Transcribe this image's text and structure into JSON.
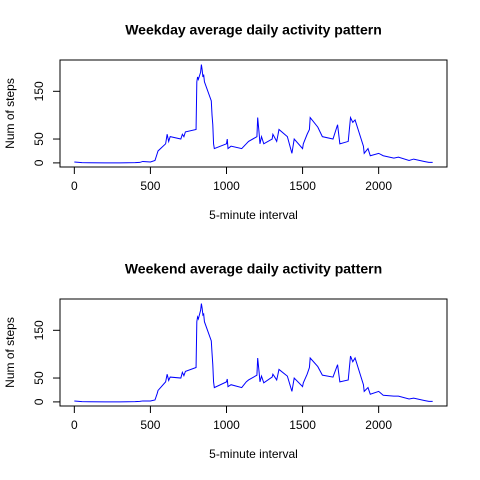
{
  "chart_data": [
    {
      "type": "line",
      "title": "Weekday average daily activity pattern",
      "x_label": "5-minute interval",
      "y_label": "Num of steps",
      "x": [
        0,
        50,
        100,
        200,
        300,
        400,
        430,
        450,
        500,
        530,
        545,
        550,
        600,
        610,
        620,
        630,
        700,
        710,
        720,
        730,
        800,
        805,
        810,
        815,
        830,
        835,
        840,
        845,
        850,
        855,
        900,
        905,
        910,
        915,
        920,
        1000,
        1005,
        1010,
        1030,
        1100,
        1130,
        1145,
        1200,
        1205,
        1215,
        1220,
        1230,
        1245,
        1300,
        1305,
        1330,
        1345,
        1400,
        1430,
        1445,
        1500,
        1505,
        1530,
        1545,
        1550,
        1600,
        1630,
        1700,
        1730,
        1745,
        1800,
        1815,
        1830,
        1845,
        1900,
        1905,
        1930,
        1945,
        2000,
        2030,
        2100,
        2130,
        2200,
        2230,
        2300,
        2330,
        2355
      ],
      "series": [
        {
          "name": "Weekday",
          "color": "#0000ff",
          "values": [
            2,
            0.5,
            0.3,
            0,
            0,
            0.5,
            1,
            3,
            2,
            5,
            20,
            25,
            40,
            60,
            45,
            55,
            50,
            60,
            55,
            65,
            70,
            170,
            180,
            175,
            190,
            206,
            195,
            180,
            185,
            170,
            130,
            100,
            80,
            40,
            30,
            40,
            50,
            30,
            35,
            30,
            40,
            45,
            55,
            95,
            60,
            40,
            55,
            40,
            50,
            60,
            45,
            70,
            55,
            20,
            50,
            30,
            40,
            60,
            70,
            95,
            75,
            55,
            50,
            80,
            40,
            45,
            95,
            85,
            90,
            35,
            20,
            30,
            15,
            20,
            15,
            10,
            12,
            5,
            8,
            3,
            1,
            1
          ]
        }
      ],
      "xlim": [
        -94.2,
        2449.2
      ],
      "ylim": [
        -8.6,
        215.6
      ],
      "xticks": [
        0,
        500,
        1000,
        1500,
        2000
      ],
      "yticks": [
        0,
        50,
        150
      ]
    },
    {
      "type": "line",
      "title": "Weekend average daily activity pattern",
      "x_label": "5-minute interval",
      "y_label": "Num of steps",
      "x": [
        0,
        50,
        100,
        200,
        300,
        400,
        430,
        450,
        500,
        530,
        545,
        550,
        600,
        610,
        620,
        630,
        700,
        710,
        720,
        730,
        800,
        805,
        810,
        815,
        830,
        835,
        840,
        845,
        850,
        855,
        900,
        905,
        910,
        915,
        920,
        1000,
        1005,
        1010,
        1030,
        1100,
        1130,
        1145,
        1200,
        1205,
        1215,
        1220,
        1230,
        1245,
        1300,
        1305,
        1330,
        1345,
        1400,
        1430,
        1445,
        1500,
        1505,
        1530,
        1545,
        1550,
        1600,
        1630,
        1700,
        1730,
        1745,
        1800,
        1815,
        1830,
        1845,
        1900,
        1905,
        1930,
        1945,
        2000,
        2030,
        2100,
        2130,
        2200,
        2230,
        2300,
        2330,
        2355
      ],
      "series": [
        {
          "name": "Weekend",
          "color": "#0000ff",
          "values": [
            2,
            0.5,
            0.3,
            0,
            0,
            0.5,
            1,
            2,
            2,
            4,
            18,
            24,
            42,
            58,
            45,
            52,
            50,
            62,
            55,
            64,
            72,
            168,
            178,
            174,
            192,
            206,
            196,
            182,
            184,
            168,
            128,
            102,
            78,
            42,
            30,
            42,
            48,
            32,
            36,
            30,
            42,
            46,
            56,
            92,
            60,
            42,
            54,
            40,
            52,
            58,
            46,
            68,
            54,
            22,
            50,
            32,
            40,
            58,
            72,
            92,
            74,
            56,
            52,
            78,
            42,
            46,
            96,
            84,
            92,
            36,
            22,
            30,
            16,
            22,
            14,
            12,
            12,
            6,
            8,
            3,
            1,
            1
          ]
        }
      ],
      "xlim": [
        -94.2,
        2449.2
      ],
      "ylim": [
        -8.6,
        215.6
      ],
      "xticks": [
        0,
        500,
        1000,
        1500,
        2000
      ],
      "yticks": [
        0,
        50,
        150
      ]
    }
  ]
}
